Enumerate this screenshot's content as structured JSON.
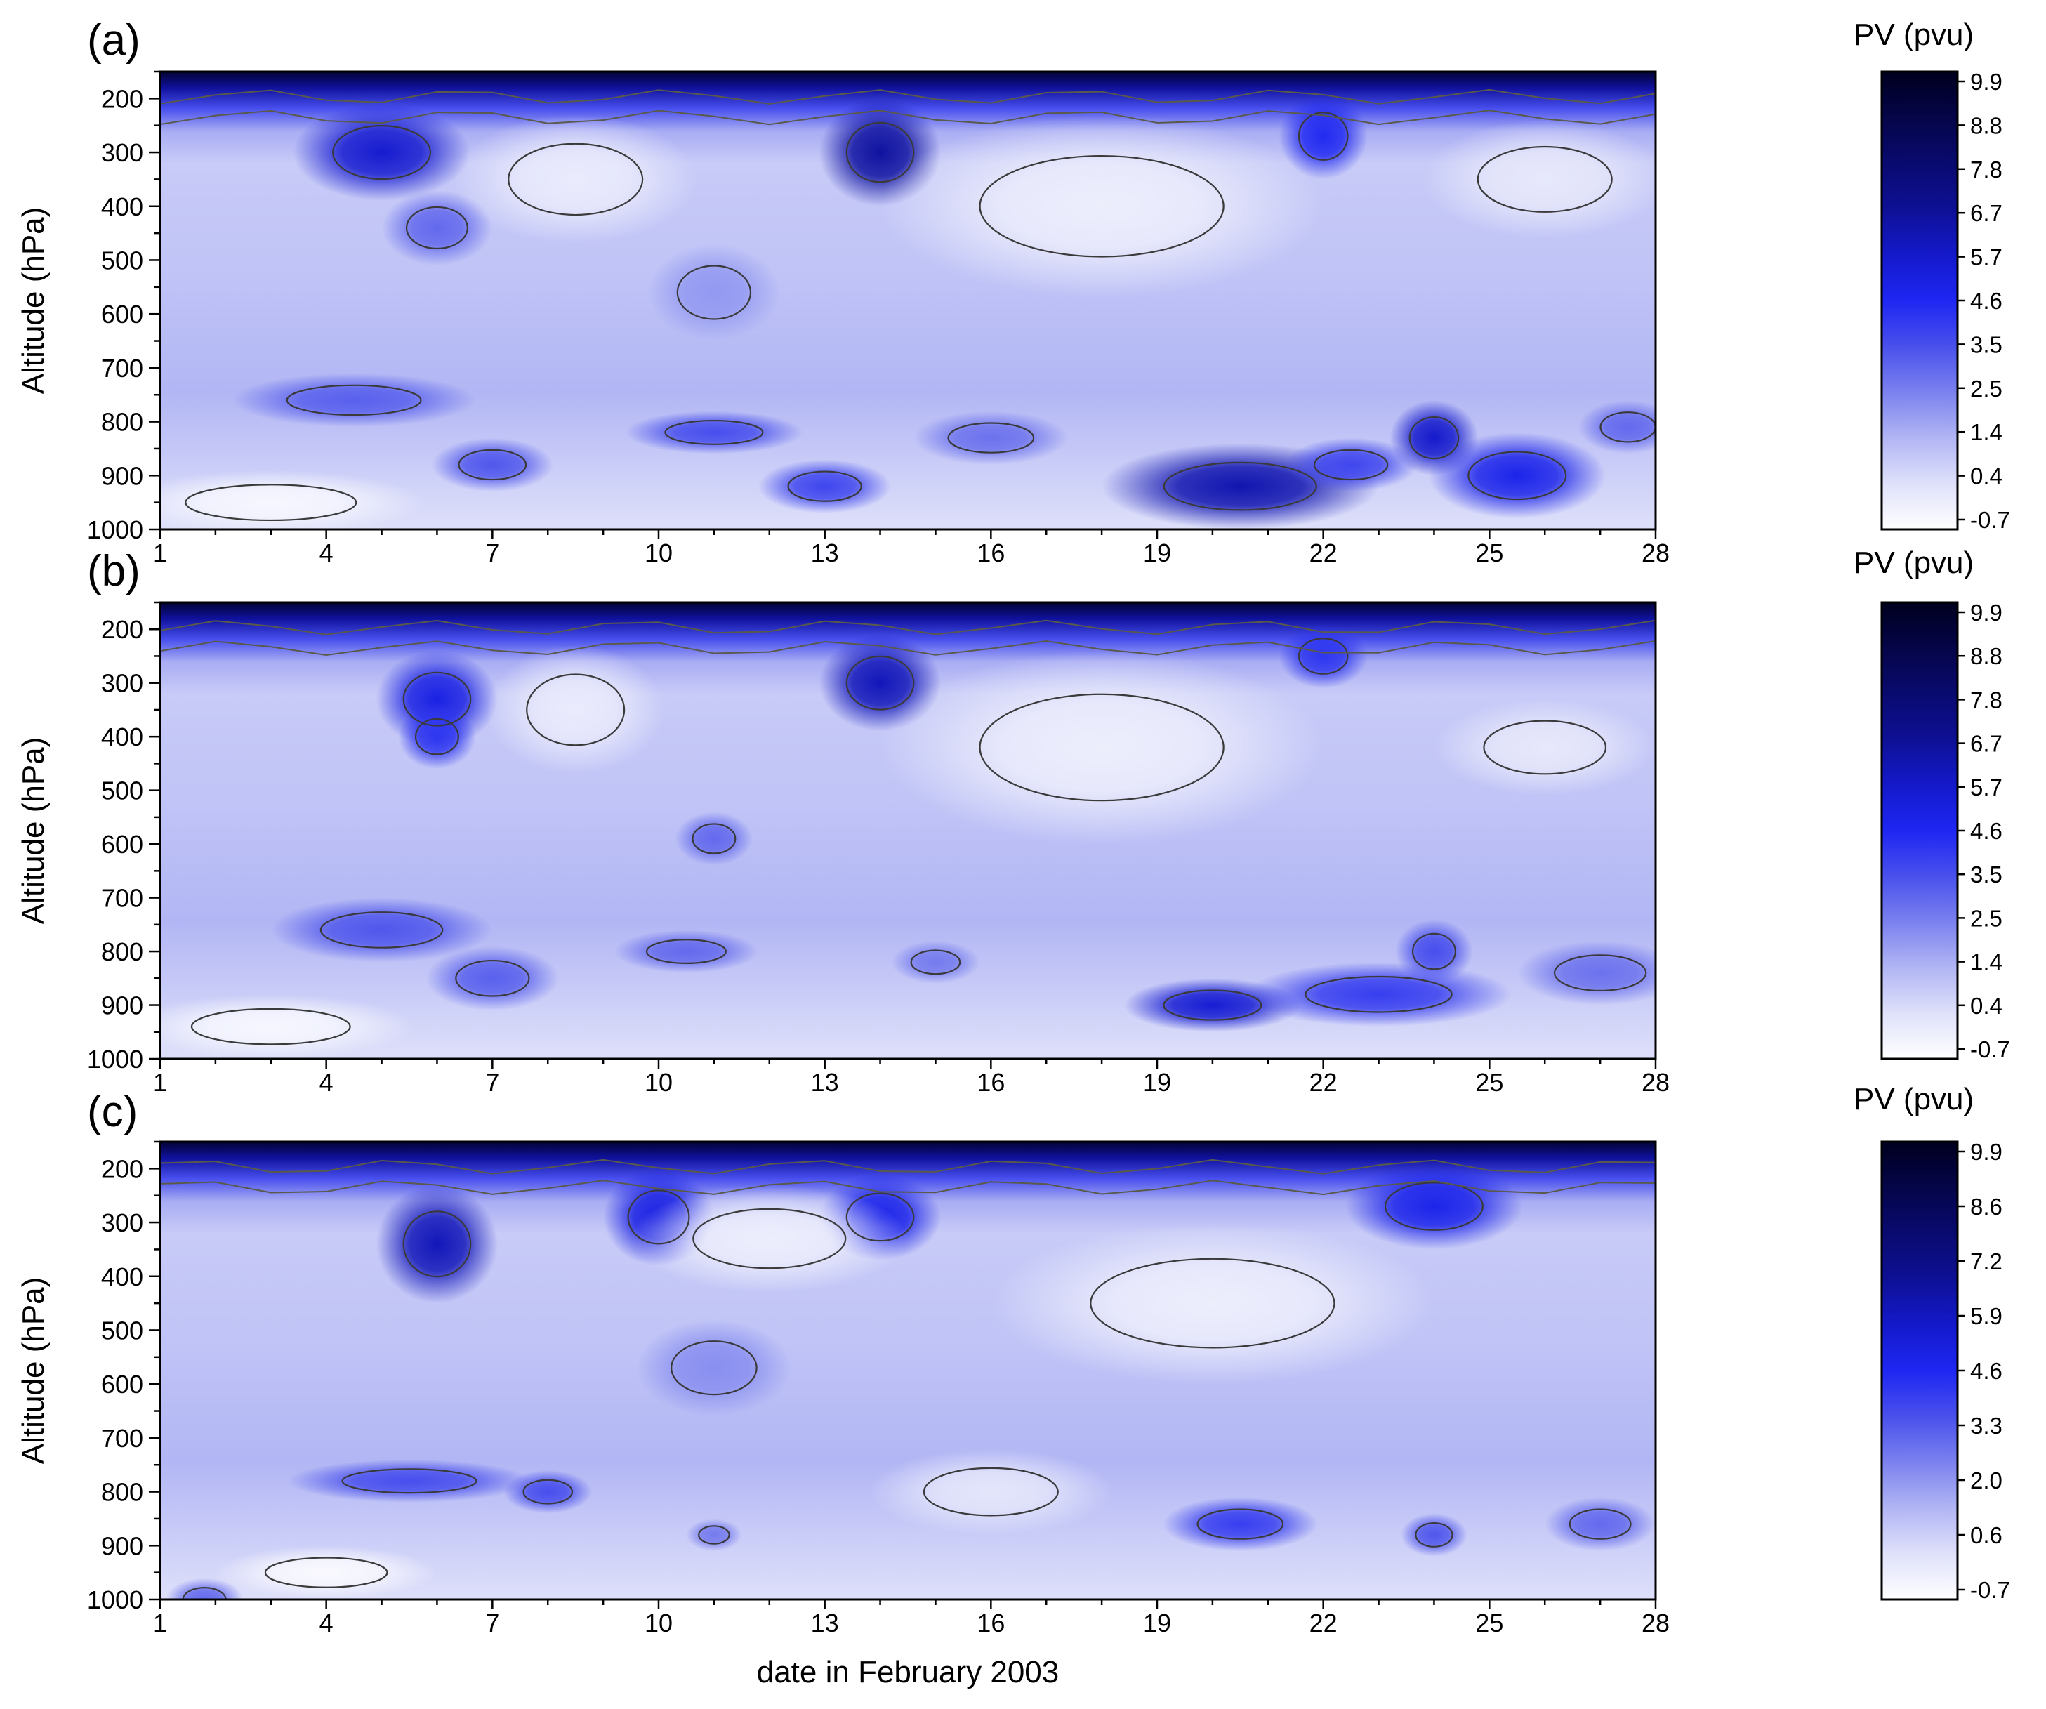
{
  "chart_data": [
    {
      "type": "heatmap",
      "panel_label": "(a)",
      "xlabel": "",
      "ylabel": "Altitude (hPa)",
      "x_ticks": [
        "1",
        "4",
        "7",
        "10",
        "13",
        "16",
        "19",
        "22",
        "25",
        "28"
      ],
      "y_ticks": [
        "200",
        "300",
        "400",
        "500",
        "600",
        "700",
        "800",
        "900",
        "1000"
      ],
      "xlim": [
        1,
        28
      ],
      "ylim": [
        1000,
        150
      ],
      "colorbar": {
        "title": "PV (pvu)",
        "ticks": [
          "9.9",
          "8.8",
          "7.8",
          "6.7",
          "5.7",
          "4.6",
          "3.5",
          "2.5",
          "1.4",
          "0.4",
          "-0.7"
        ],
        "range": [
          -0.7,
          9.9
        ]
      },
      "features": [
        {
          "x": 5,
          "p": 300,
          "pv": 5.5,
          "rx": 1.6,
          "ry": 90
        },
        {
          "x": 14,
          "p": 300,
          "pv": 6.5,
          "rx": 1.1,
          "ry": 100
        },
        {
          "x": 22,
          "p": 270,
          "pv": 4.5,
          "rx": 0.8,
          "ry": 80
        },
        {
          "x": 6,
          "p": 440,
          "pv": 3.0,
          "rx": 1.0,
          "ry": 70
        },
        {
          "x": 11,
          "p": 560,
          "pv": 2.0,
          "rx": 1.2,
          "ry": 90
        },
        {
          "x": 4.5,
          "p": 760,
          "pv": 3.2,
          "rx": 2.2,
          "ry": 50
        },
        {
          "x": 11,
          "p": 820,
          "pv": 3.6,
          "rx": 1.6,
          "ry": 40
        },
        {
          "x": 7,
          "p": 880,
          "pv": 3.4,
          "rx": 1.1,
          "ry": 50
        },
        {
          "x": 13,
          "p": 920,
          "pv": 3.8,
          "rx": 1.2,
          "ry": 50
        },
        {
          "x": 16,
          "p": 830,
          "pv": 2.8,
          "rx": 1.4,
          "ry": 50
        },
        {
          "x": 20.5,
          "p": 920,
          "pv": 6.2,
          "rx": 2.5,
          "ry": 80
        },
        {
          "x": 24,
          "p": 830,
          "pv": 5.6,
          "rx": 0.8,
          "ry": 70
        },
        {
          "x": 25.5,
          "p": 900,
          "pv": 4.8,
          "rx": 1.6,
          "ry": 80
        },
        {
          "x": 22.5,
          "p": 880,
          "pv": 3.8,
          "rx": 1.2,
          "ry": 50
        },
        {
          "x": 27.5,
          "p": 810,
          "pv": 3.0,
          "rx": 0.9,
          "ry": 50
        },
        {
          "x": 3,
          "p": 950,
          "pv": -0.4,
          "rx": 2.8,
          "ry": 60
        },
        {
          "x": 8.5,
          "p": 350,
          "pv": 0.0,
          "rx": 2.2,
          "ry": 120
        },
        {
          "x": 18,
          "p": 400,
          "pv": -0.1,
          "rx": 4.0,
          "ry": 170
        },
        {
          "x": 26,
          "p": 350,
          "pv": 0.1,
          "rx": 2.2,
          "ry": 110
        }
      ]
    },
    {
      "type": "heatmap",
      "panel_label": "(b)",
      "xlabel": "",
      "ylabel": "Altitude (hPa)",
      "x_ticks": [
        "1",
        "4",
        "7",
        "10",
        "13",
        "16",
        "19",
        "22",
        "25",
        "28"
      ],
      "y_ticks": [
        "200",
        "300",
        "400",
        "500",
        "600",
        "700",
        "800",
        "900",
        "1000"
      ],
      "xlim": [
        1,
        28
      ],
      "ylim": [
        1000,
        150
      ],
      "colorbar": {
        "title": "PV (pvu)",
        "ticks": [
          "9.9",
          "8.8",
          "7.8",
          "6.7",
          "5.7",
          "4.6",
          "3.5",
          "2.5",
          "1.4",
          "0.4",
          "-0.7"
        ],
        "range": [
          -0.7,
          9.9
        ]
      },
      "features": [
        {
          "x": 6,
          "p": 330,
          "pv": 5.0,
          "rx": 1.1,
          "ry": 90
        },
        {
          "x": 14,
          "p": 300,
          "pv": 6.0,
          "rx": 1.1,
          "ry": 90
        },
        {
          "x": 22,
          "p": 250,
          "pv": 4.2,
          "rx": 0.8,
          "ry": 60
        },
        {
          "x": 6,
          "p": 400,
          "pv": 4.2,
          "rx": 0.7,
          "ry": 60
        },
        {
          "x": 11,
          "p": 590,
          "pv": 3.0,
          "rx": 0.7,
          "ry": 50
        },
        {
          "x": 5,
          "p": 760,
          "pv": 3.4,
          "rx": 2.0,
          "ry": 60
        },
        {
          "x": 7,
          "p": 850,
          "pv": 3.2,
          "rx": 1.2,
          "ry": 60
        },
        {
          "x": 10.5,
          "p": 800,
          "pv": 3.0,
          "rx": 1.3,
          "ry": 40
        },
        {
          "x": 15,
          "p": 820,
          "pv": 2.6,
          "rx": 0.8,
          "ry": 40
        },
        {
          "x": 20,
          "p": 900,
          "pv": 5.4,
          "rx": 1.6,
          "ry": 50
        },
        {
          "x": 23,
          "p": 880,
          "pv": 4.0,
          "rx": 2.4,
          "ry": 60
        },
        {
          "x": 24,
          "p": 800,
          "pv": 3.6,
          "rx": 0.7,
          "ry": 60
        },
        {
          "x": 27,
          "p": 840,
          "pv": 2.8,
          "rx": 1.5,
          "ry": 60
        },
        {
          "x": 3,
          "p": 940,
          "pv": -0.4,
          "rx": 2.6,
          "ry": 60
        },
        {
          "x": 8.5,
          "p": 350,
          "pv": 0.0,
          "rx": 1.6,
          "ry": 120
        },
        {
          "x": 18,
          "p": 420,
          "pv": -0.1,
          "rx": 4.0,
          "ry": 180
        },
        {
          "x": 26,
          "p": 420,
          "pv": 0.1,
          "rx": 2.0,
          "ry": 90
        }
      ]
    },
    {
      "type": "heatmap",
      "panel_label": "(c)",
      "xlabel": "date in February 2003",
      "ylabel": "Altitude (hPa)",
      "x_ticks": [
        "1",
        "4",
        "7",
        "10",
        "13",
        "16",
        "19",
        "22",
        "25",
        "28"
      ],
      "y_ticks": [
        "200",
        "300",
        "400",
        "500",
        "600",
        "700",
        "800",
        "900",
        "1000"
      ],
      "xlim": [
        1,
        28
      ],
      "ylim": [
        1000,
        150
      ],
      "colorbar": {
        "title": "PV (pvu)",
        "ticks": [
          "9.9",
          "8.6",
          "7.2",
          "5.9",
          "4.6",
          "3.3",
          "2.0",
          "0.6",
          "-0.7"
        ],
        "range": [
          -0.7,
          9.9
        ]
      },
      "features": [
        {
          "x": 6,
          "p": 340,
          "pv": 6.0,
          "rx": 1.1,
          "ry": 110
        },
        {
          "x": 10,
          "p": 290,
          "pv": 5.0,
          "rx": 1.0,
          "ry": 90
        },
        {
          "x": 14,
          "p": 290,
          "pv": 4.8,
          "rx": 1.1,
          "ry": 80
        },
        {
          "x": 24,
          "p": 270,
          "pv": 4.8,
          "rx": 1.6,
          "ry": 80
        },
        {
          "x": 11,
          "p": 570,
          "pv": 2.2,
          "rx": 1.4,
          "ry": 90
        },
        {
          "x": 5.5,
          "p": 780,
          "pv": 3.6,
          "rx": 2.2,
          "ry": 40
        },
        {
          "x": 8,
          "p": 800,
          "pv": 3.6,
          "rx": 0.8,
          "ry": 40
        },
        {
          "x": 20.5,
          "p": 860,
          "pv": 4.0,
          "rx": 1.4,
          "ry": 50
        },
        {
          "x": 24,
          "p": 880,
          "pv": 3.4,
          "rx": 0.6,
          "ry": 40
        },
        {
          "x": 27,
          "p": 860,
          "pv": 3.0,
          "rx": 1.0,
          "ry": 50
        },
        {
          "x": 11,
          "p": 880,
          "pv": 2.6,
          "rx": 0.5,
          "ry": 30
        },
        {
          "x": 1.8,
          "p": 1000,
          "pv": 3.0,
          "rx": 0.7,
          "ry": 40
        },
        {
          "x": 4,
          "p": 950,
          "pv": -0.5,
          "rx": 2.0,
          "ry": 50
        },
        {
          "x": 12,
          "p": 330,
          "pv": -0.1,
          "rx": 2.5,
          "ry": 100
        },
        {
          "x": 20,
          "p": 450,
          "pv": -0.1,
          "rx": 4.0,
          "ry": 150
        },
        {
          "x": 16,
          "p": 800,
          "pv": 0.2,
          "rx": 2.2,
          "ry": 80
        }
      ]
    }
  ]
}
